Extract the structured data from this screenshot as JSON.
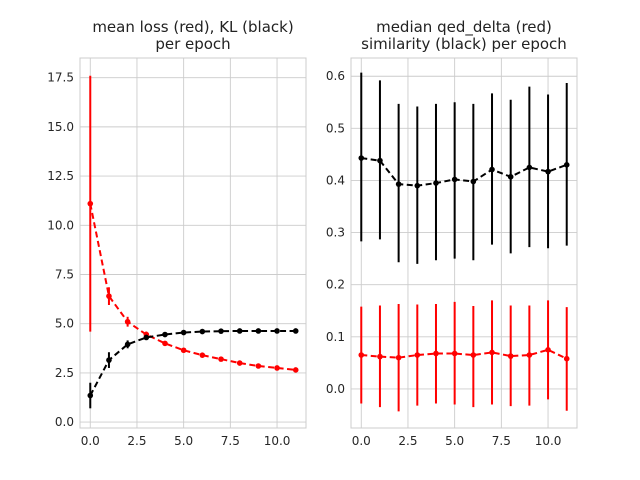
{
  "chart_data": [
    {
      "type": "line",
      "title_lines": [
        "mean loss (red), KL (black)",
        "per epoch"
      ],
      "xlabel": "",
      "ylabel": "",
      "xlim": [
        -0.55,
        11.55
      ],
      "ylim": [
        -0.3,
        18.5
      ],
      "x_ticks": [
        0,
        2.5,
        5,
        7.5,
        10
      ],
      "x_tick_labels": [
        "0.0",
        "2.5",
        "5.0",
        "7.5",
        "10.0"
      ],
      "y_ticks": [
        0,
        2.5,
        5,
        7.5,
        10,
        12.5,
        15,
        17.5
      ],
      "y_tick_labels": [
        "0.0",
        "2.5",
        "5.0",
        "7.5",
        "10.0",
        "12.5",
        "15.0",
        "17.5"
      ],
      "grid": true,
      "series": [
        {
          "color": "#ff0000",
          "x": [
            0,
            1,
            2,
            3,
            4,
            5,
            6,
            7,
            8,
            9,
            10,
            11
          ],
          "y": [
            11.1,
            6.4,
            5.1,
            4.45,
            4.0,
            3.65,
            3.4,
            3.2,
            3.0,
            2.85,
            2.75,
            2.65
          ],
          "err": [
            6.5,
            0.45,
            0.25,
            0.15,
            0.1,
            0.1,
            0.08,
            0.08,
            0.08,
            0.07,
            0.07,
            0.07
          ]
        },
        {
          "color": "#000000",
          "x": [
            0,
            1,
            2,
            3,
            4,
            5,
            6,
            7,
            8,
            9,
            10,
            11
          ],
          "y": [
            1.35,
            3.15,
            3.95,
            4.3,
            4.45,
            4.55,
            4.6,
            4.62,
            4.63,
            4.63,
            4.63,
            4.63
          ],
          "err": [
            0.65,
            0.4,
            0.2,
            0.12,
            0.08,
            0.06,
            0.05,
            0.05,
            0.05,
            0.05,
            0.05,
            0.05
          ]
        }
      ]
    },
    {
      "type": "line",
      "title_lines": [
        "median qed_delta (red)",
        "similarity (black) per epoch"
      ],
      "xlabel": "",
      "ylabel": "",
      "xlim": [
        -0.55,
        11.55
      ],
      "ylim": [
        -0.075,
        0.635
      ],
      "x_ticks": [
        0,
        2.5,
        5,
        7.5,
        10
      ],
      "x_tick_labels": [
        "0.0",
        "2.5",
        "5.0",
        "7.5",
        "10.0"
      ],
      "y_ticks": [
        0,
        0.1,
        0.2,
        0.3,
        0.4,
        0.5,
        0.6
      ],
      "y_tick_labels": [
        "0.0",
        "0.1",
        "0.2",
        "0.3",
        "0.4",
        "0.5",
        "0.6"
      ],
      "grid": true,
      "series": [
        {
          "color": "#ff0000",
          "x": [
            0,
            1,
            2,
            3,
            4,
            5,
            6,
            7,
            8,
            9,
            10,
            11
          ],
          "y": [
            0.065,
            0.062,
            0.06,
            0.065,
            0.068,
            0.068,
            0.065,
            0.07,
            0.063,
            0.065,
            0.075,
            0.058
          ],
          "lo": [
            -0.028,
            -0.035,
            -0.043,
            -0.032,
            -0.028,
            -0.03,
            -0.035,
            -0.03,
            -0.033,
            -0.032,
            -0.02,
            -0.042
          ],
          "hi": [
            0.158,
            0.16,
            0.163,
            0.162,
            0.163,
            0.167,
            0.159,
            0.17,
            0.16,
            0.16,
            0.17,
            0.157
          ]
        },
        {
          "color": "#000000",
          "x": [
            0,
            1,
            2,
            3,
            4,
            5,
            6,
            7,
            8,
            9,
            10,
            11
          ],
          "y": [
            0.443,
            0.438,
            0.393,
            0.39,
            0.395,
            0.402,
            0.398,
            0.421,
            0.407,
            0.425,
            0.417,
            0.43
          ],
          "lo": [
            0.283,
            0.287,
            0.243,
            0.24,
            0.247,
            0.25,
            0.247,
            0.277,
            0.26,
            0.272,
            0.27,
            0.275
          ],
          "hi": [
            0.607,
            0.592,
            0.547,
            0.542,
            0.547,
            0.55,
            0.547,
            0.567,
            0.555,
            0.58,
            0.565,
            0.587
          ]
        }
      ]
    }
  ]
}
